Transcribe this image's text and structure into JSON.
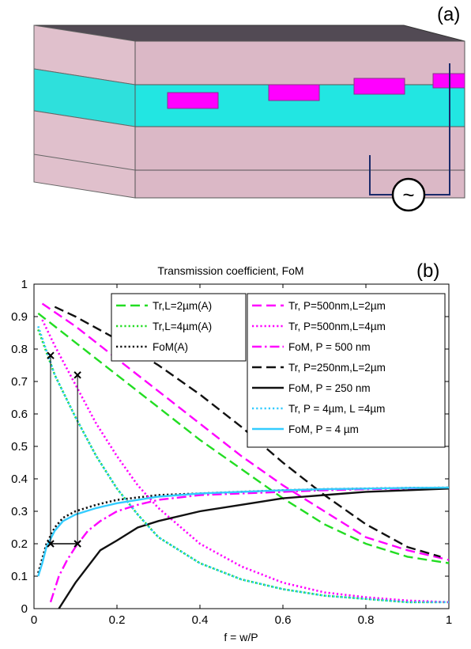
{
  "panel_a": {
    "label": "(a)",
    "source_symbol": "~"
  },
  "panel_b": {
    "label": "(b)"
  },
  "chart_data": {
    "type": "line",
    "title": "Transmission coefficient, FoM",
    "xlabel": "f = w/P",
    "ylabel": "",
    "xlim": [
      0,
      1
    ],
    "ylim": [
      0,
      1
    ],
    "xticks": [
      "0",
      "0.2",
      "0.4",
      "0.6",
      "0.8",
      "1"
    ],
    "yticks": [
      "0",
      "0.1",
      "0.2",
      "0.3",
      "0.4",
      "0.5",
      "0.6",
      "0.7",
      "0.8",
      "0.9",
      "1"
    ],
    "grid": false,
    "legend_left": [
      "Tr,L=2µm(A)",
      "Tr,L=4µm(A)",
      "FoM(A)"
    ],
    "legend_right": [
      "Tr, P=500nm,L=2µm",
      "Tr, P=500nm,L=4µm",
      "FoM, P = 500 nm",
      "Tr, P=250nm,L=2µm",
      "FoM, P = 250 nm",
      "Tr, P = 4µm, L =4µm",
      "FoM, P = 4 µm"
    ],
    "annotations": {
      "marker": "x",
      "points": [
        [
          0.04,
          0.78
        ],
        [
          0.04,
          0.2
        ],
        [
          0.105,
          0.72
        ],
        [
          0.105,
          0.2
        ]
      ]
    },
    "series": [
      {
        "name": "Tr,L=2µm(A)",
        "color": "#22dd22",
        "style": "dash",
        "x": [
          0.01,
          0.1,
          0.2,
          0.3,
          0.4,
          0.5,
          0.6,
          0.7,
          0.8,
          0.9,
          1.0
        ],
        "y": [
          0.91,
          0.82,
          0.72,
          0.62,
          0.52,
          0.43,
          0.34,
          0.26,
          0.2,
          0.16,
          0.14
        ]
      },
      {
        "name": "Tr,L=4µm(A)",
        "color": "#22dd22",
        "style": "dot",
        "x": [
          0.01,
          0.05,
          0.1,
          0.15,
          0.2,
          0.25,
          0.3,
          0.4,
          0.5,
          0.6,
          0.7,
          0.8,
          0.9,
          1.0
        ],
        "y": [
          0.86,
          0.72,
          0.59,
          0.47,
          0.37,
          0.29,
          0.22,
          0.14,
          0.09,
          0.06,
          0.04,
          0.03,
          0.02,
          0.02
        ]
      },
      {
        "name": "FoM(A)",
        "color": "#111111",
        "style": "dot",
        "x": [
          0.01,
          0.03,
          0.05,
          0.07,
          0.1,
          0.15,
          0.2,
          0.3,
          0.4,
          0.5,
          0.6,
          0.7,
          0.8,
          0.9,
          1.0
        ],
        "y": [
          0.11,
          0.2,
          0.25,
          0.28,
          0.3,
          0.32,
          0.335,
          0.35,
          0.355,
          0.36,
          0.365,
          0.368,
          0.37,
          0.372,
          0.373
        ]
      },
      {
        "name": "Tr, P=500nm,L=2µm",
        "color": "#ff00ff",
        "style": "dash",
        "x": [
          0.02,
          0.1,
          0.2,
          0.3,
          0.4,
          0.5,
          0.6,
          0.7,
          0.8,
          0.9,
          1.0
        ],
        "y": [
          0.94,
          0.87,
          0.77,
          0.67,
          0.57,
          0.47,
          0.38,
          0.3,
          0.22,
          0.18,
          0.15
        ]
      },
      {
        "name": "Tr, P=500nm,L=4µm",
        "color": "#ff00ff",
        "style": "dot",
        "x": [
          0.02,
          0.05,
          0.1,
          0.15,
          0.2,
          0.25,
          0.3,
          0.4,
          0.5,
          0.6,
          0.7,
          0.8,
          0.9,
          1.0
        ],
        "y": [
          0.89,
          0.81,
          0.69,
          0.57,
          0.47,
          0.38,
          0.31,
          0.2,
          0.13,
          0.08,
          0.05,
          0.035,
          0.025,
          0.02
        ]
      },
      {
        "name": "FoM, P = 500 nm",
        "color": "#ff00ff",
        "style": "dashdot",
        "x": [
          0.04,
          0.06,
          0.08,
          0.1,
          0.13,
          0.16,
          0.2,
          0.25,
          0.3,
          0.4,
          0.5,
          0.6,
          0.7,
          0.8,
          0.9,
          1.0
        ],
        "y": [
          0.02,
          0.1,
          0.15,
          0.19,
          0.24,
          0.27,
          0.3,
          0.32,
          0.335,
          0.35,
          0.355,
          0.36,
          0.365,
          0.368,
          0.37,
          0.372
        ]
      },
      {
        "name": "Tr, P=250nm,L=2µm",
        "color": "#111111",
        "style": "dash",
        "x": [
          0.05,
          0.1,
          0.2,
          0.3,
          0.4,
          0.5,
          0.6,
          0.7,
          0.8,
          0.9,
          0.98
        ],
        "y": [
          0.93,
          0.9,
          0.83,
          0.75,
          0.66,
          0.56,
          0.45,
          0.35,
          0.26,
          0.19,
          0.16
        ]
      },
      {
        "name": "FoM, P = 250 nm",
        "color": "#111111",
        "style": "solid",
        "x": [
          0.06,
          0.1,
          0.16,
          0.2,
          0.25,
          0.3,
          0.4,
          0.5,
          0.6,
          0.7,
          0.8,
          0.9,
          1.0
        ],
        "y": [
          0.0,
          0.08,
          0.18,
          0.21,
          0.25,
          0.27,
          0.3,
          0.32,
          0.34,
          0.35,
          0.36,
          0.365,
          0.37
        ]
      },
      {
        "name": "Tr, P = 4µm, L =4µm",
        "color": "#33ccff",
        "style": "dot",
        "x": [
          0.01,
          0.05,
          0.1,
          0.15,
          0.2,
          0.25,
          0.3,
          0.4,
          0.5,
          0.6,
          0.7,
          0.8,
          0.9,
          1.0
        ],
        "y": [
          0.87,
          0.72,
          0.59,
          0.47,
          0.37,
          0.29,
          0.22,
          0.14,
          0.09,
          0.06,
          0.04,
          0.03,
          0.02,
          0.02
        ]
      },
      {
        "name": "FoM, P = 4 µm",
        "color": "#33ccff",
        "style": "solid",
        "x": [
          0.01,
          0.02,
          0.03,
          0.05,
          0.07,
          0.1,
          0.15,
          0.2,
          0.3,
          0.4,
          0.5,
          0.6,
          0.7,
          0.8,
          0.9,
          1.0
        ],
        "y": [
          0.1,
          0.14,
          0.19,
          0.24,
          0.27,
          0.29,
          0.31,
          0.325,
          0.345,
          0.355,
          0.36,
          0.365,
          0.368,
          0.37,
          0.372,
          0.373
        ]
      }
    ]
  }
}
